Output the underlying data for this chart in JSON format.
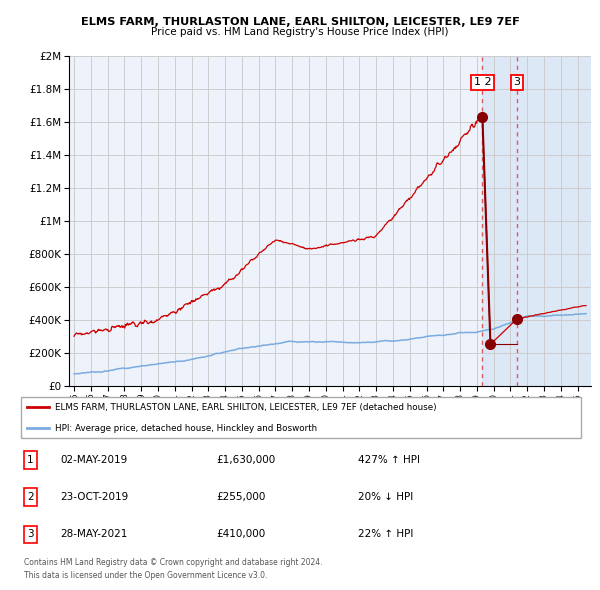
{
  "title": "ELMS FARM, THURLASTON LANE, EARL SHILTON, LEICESTER, LE9 7EF",
  "subtitle": "Price paid vs. HM Land Registry's House Price Index (HPI)",
  "legend_line1": "ELMS FARM, THURLASTON LANE, EARL SHILTON, LEICESTER, LE9 7EF (detached house)",
  "legend_line2": "HPI: Average price, detached house, Hinckley and Bosworth",
  "footer1": "Contains HM Land Registry data © Crown copyright and database right 2024.",
  "footer2": "This data is licensed under the Open Government Licence v3.0.",
  "transactions": [
    {
      "num": "1",
      "date": "02-MAY-2019",
      "price": "£1,630,000",
      "hpi": "427% ↑ HPI",
      "year": 2019.33
    },
    {
      "num": "2",
      "date": "23-OCT-2019",
      "price": "£255,000",
      "hpi": "20% ↓ HPI",
      "year": 2019.81
    },
    {
      "num": "3",
      "date": "28-MAY-2021",
      "price": "£410,000",
      "hpi": "22% ↑ HPI",
      "year": 2021.4
    }
  ],
  "red_line_color": "#cc0000",
  "blue_line_color": "#7aace0",
  "marker_color": "#880000",
  "dashed_line_color": "#dd4444",
  "background_plot": "#eef2fa",
  "background_plot_shaded": "#dce8f5",
  "background_fig": "#ffffff",
  "grid_color": "#c8c8c8",
  "ylim": [
    0,
    2000000
  ],
  "xlim_start": 1994.7,
  "xlim_end": 2025.8,
  "transaction_marker_values": [
    1630000,
    255000,
    410000
  ],
  "transaction_years": [
    2019.33,
    2019.81,
    2021.4
  ],
  "shade_start": 2019.33,
  "shade_end": 2025.8
}
